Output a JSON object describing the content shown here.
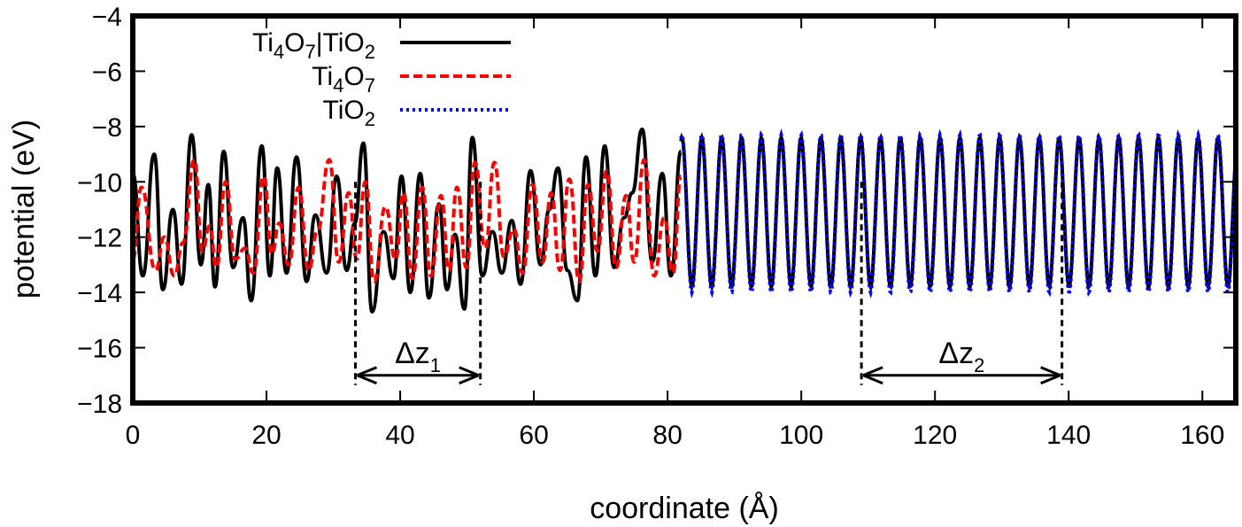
{
  "chart_data": {
    "type": "line",
    "xlabel": "coordinate (Å)",
    "ylabel": "potential (eV)",
    "xlim": [
      0,
      165
    ],
    "ylim": [
      -18,
      -4
    ],
    "xticks": [
      0,
      20,
      40,
      60,
      80,
      100,
      120,
      140,
      160
    ],
    "yticks": [
      -4,
      -6,
      -8,
      -10,
      -12,
      -14,
      -16,
      -18
    ],
    "xtick_labels": [
      "0",
      "20",
      "40",
      "60",
      "80",
      "100",
      "120",
      "140",
      "160"
    ],
    "ytick_labels": [
      "−4",
      "−6",
      "−8",
      "−10",
      "−12",
      "−14",
      "−16",
      "−18"
    ],
    "grid": false,
    "legend_position": "top-left",
    "series": [
      {
        "name": "Ti4O7|TiO2",
        "label_parts": [
          "Ti",
          "4",
          "O",
          "7",
          "|TiO",
          "2"
        ],
        "color": "#000000",
        "style": "solid",
        "x": [
          0,
          1.5,
          3.2,
          4.5,
          6,
          7.3,
          8.8,
          10.2,
          11.3,
          12.3,
          13.6,
          15,
          16.5,
          17.7,
          19.3,
          20.5,
          21.6,
          23,
          24.5,
          26,
          27.3,
          29,
          30.5,
          32,
          33.2,
          34.5,
          35.8,
          37.5,
          39,
          40.2,
          41.5,
          43,
          44.3,
          45.8,
          47,
          48.2,
          49.6,
          50.8,
          52.3,
          53.8,
          55.2,
          56.7,
          58,
          59.5,
          61,
          62.3,
          63.6,
          65,
          66.5,
          67.8,
          69.2,
          70.6,
          72,
          73.5,
          74.7,
          76.2,
          77.7,
          79.2,
          80.5,
          82
        ],
        "y": [
          -9.7,
          -13.4,
          -9.0,
          -13.9,
          -11.0,
          -13.7,
          -8.3,
          -13.0,
          -10.1,
          -13.8,
          -8.9,
          -13.1,
          -11.3,
          -14.3,
          -8.7,
          -13.4,
          -9.5,
          -13.3,
          -9.1,
          -13.6,
          -11.2,
          -13.3,
          -9.8,
          -13.2,
          -11.5,
          -8.6,
          -14.7,
          -11.8,
          -13.5,
          -9.8,
          -14.0,
          -9.7,
          -14.2,
          -10.8,
          -13.9,
          -11.9,
          -14.6,
          -8.4,
          -13.4,
          -11.8,
          -13.3,
          -11.4,
          -13.7,
          -9.6,
          -13.0,
          -11.0,
          -9.5,
          -13.2,
          -14.3,
          -9.1,
          -13.4,
          -8.7,
          -13.1,
          -11.3,
          -10.4,
          -8.1,
          -12.9,
          -9.7,
          -13.4,
          -8.9
        ]
      },
      {
        "name": "Ti4O7",
        "label_parts": [
          "Ti",
          "4",
          "O",
          "7"
        ],
        "color": "#ff0000",
        "style": "dashed",
        "x": [
          0,
          1.3,
          3.4,
          4.7,
          6.2,
          7.5,
          9.2,
          10.4,
          11.5,
          12.5,
          13.9,
          15.3,
          16.8,
          18,
          19.6,
          20.8,
          21.9,
          23.3,
          24.8,
          26.3,
          27.6,
          29.4,
          30.8,
          32.3,
          33.5,
          34.8,
          36.1,
          37.8,
          39.3,
          40.5,
          41.8,
          43.3,
          44.6,
          46.1,
          47.3,
          48.5,
          49.9,
          51.2,
          52.7,
          54.1,
          55.5,
          57,
          58.3,
          59.8,
          61.3,
          62.6,
          63.9,
          65.3,
          66.8,
          68.1,
          69.5,
          70.9,
          72.3,
          73.8,
          75,
          76.5,
          78,
          79.5,
          80.8,
          82
        ],
        "y": [
          -12.8,
          -10.2,
          -13.2,
          -12.0,
          -13.4,
          -12.2,
          -9.2,
          -12.5,
          -11.6,
          -13.1,
          -10.0,
          -12.8,
          -12.4,
          -13.3,
          -9.8,
          -12.6,
          -11.5,
          -13.0,
          -10.2,
          -13.2,
          -11.8,
          -9.2,
          -12.9,
          -10.4,
          -12.8,
          -10.0,
          -13.6,
          -10.9,
          -12.8,
          -10.4,
          -13.5,
          -10.2,
          -13.4,
          -10.5,
          -13.2,
          -10.2,
          -13.1,
          -9.3,
          -12.4,
          -9.3,
          -12.7,
          -11.7,
          -13.3,
          -10.1,
          -12.9,
          -10.4,
          -13.2,
          -9.9,
          -13.6,
          -10.1,
          -12.5,
          -9.6,
          -13.1,
          -10.5,
          -12.9,
          -9.2,
          -13.4,
          -11.3,
          -13.3,
          -9.8
        ]
      },
      {
        "name": "TiO2",
        "label_parts": [
          "TiO",
          "2"
        ],
        "color": "#0000ff",
        "style": "dotted",
        "x_start": 82,
        "x_end": 165,
        "period": 2.97,
        "max": -8.3,
        "min": -14.0
      }
    ],
    "composite_periodic_segment": {
      "x_start": 82,
      "x_end": 165,
      "period": 2.97,
      "max": -8.4,
      "min": -13.8
    },
    "annotations": [
      {
        "label_main": "Δz",
        "label_sub": "1",
        "x_start": 33.3,
        "x_end": 52,
        "y_arrow": -17,
        "y_top": -10
      },
      {
        "label_main": "Δz",
        "label_sub": "2",
        "x_start": 109,
        "x_end": 139,
        "y_arrow": -17,
        "y_top": -10
      }
    ]
  }
}
